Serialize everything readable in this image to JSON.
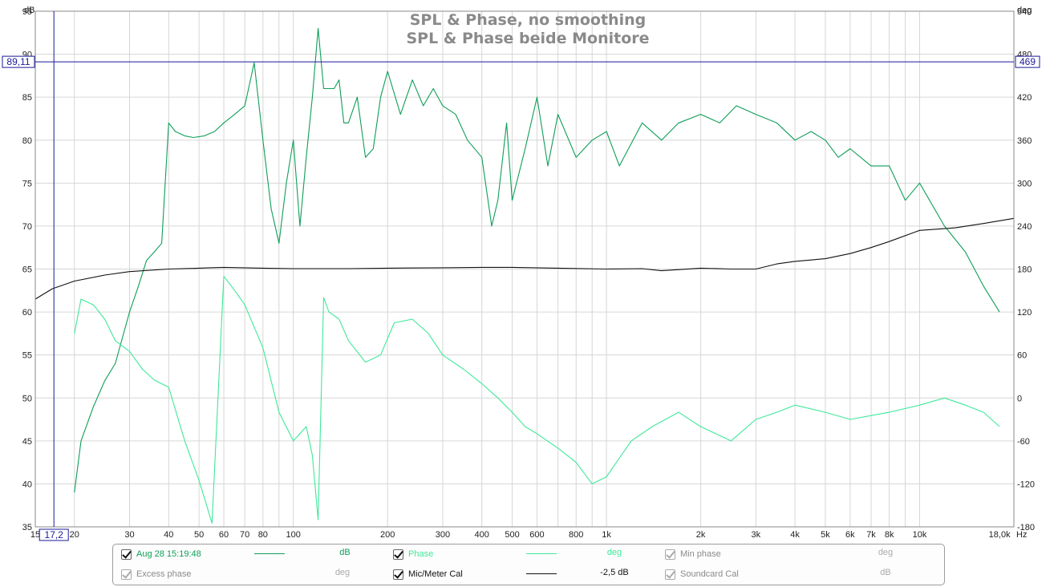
{
  "chart_data": {
    "type": "line",
    "title": "SPL & Phase, no smoothing",
    "subtitle": "SPL & Phase beide Monitore",
    "x_scale": "log",
    "xlim": [
      15,
      20000
    ],
    "x_ticks": [
      {
        "v": 15,
        "label": "15"
      },
      {
        "v": 20,
        "label": "20"
      },
      {
        "v": 30,
        "label": "30"
      },
      {
        "v": 40,
        "label": "40"
      },
      {
        "v": 50,
        "label": "50"
      },
      {
        "v": 60,
        "label": "60"
      },
      {
        "v": 70,
        "label": "70"
      },
      {
        "v": 80,
        "label": "80"
      },
      {
        "v": 100,
        "label": "100"
      },
      {
        "v": 200,
        "label": "200"
      },
      {
        "v": 300,
        "label": "300"
      },
      {
        "v": 400,
        "label": "400"
      },
      {
        "v": 500,
        "label": "500"
      },
      {
        "v": 600,
        "label": "600"
      },
      {
        "v": 800,
        "label": "800"
      },
      {
        "v": 1000,
        "label": "1k"
      },
      {
        "v": 2000,
        "label": "2k"
      },
      {
        "v": 3000,
        "label": "3k"
      },
      {
        "v": 4000,
        "label": "4k"
      },
      {
        "v": 5000,
        "label": "5k"
      },
      {
        "v": 6000,
        "label": "6k"
      },
      {
        "v": 7000,
        "label": "7k"
      },
      {
        "v": 8000,
        "label": "8k"
      },
      {
        "v": 10000,
        "label": "10k"
      },
      {
        "v": 18000,
        "label": "18,0k"
      }
    ],
    "x_unit": "Hz",
    "ylim_left": [
      35,
      95
    ],
    "y_ticks_left": [
      35,
      40,
      45,
      50,
      55,
      60,
      65,
      70,
      75,
      80,
      85,
      90,
      95
    ],
    "y_unit_left": "dB",
    "ylim_right": [
      -180,
      540
    ],
    "y_ticks_right": [
      -180,
      -120,
      -60,
      0,
      60,
      120,
      180,
      240,
      300,
      360,
      420,
      480,
      540
    ],
    "y_unit_right": "deg",
    "grid": true,
    "cursor": {
      "x_label": "17,2",
      "x": 17.2,
      "y_label": "89,11",
      "y": 89.11,
      "y_right_label": "469"
    },
    "series": [
      {
        "name": "Aug 28 15:19:48",
        "axis": "left",
        "unit": "dB",
        "color": "#0e9e58",
        "x": [
          20,
          21,
          23,
          25,
          27,
          30,
          32,
          34,
          36,
          38,
          40,
          42,
          45,
          48,
          52,
          56,
          60,
          65,
          70,
          75,
          80,
          85,
          90,
          95,
          100,
          105,
          110,
          115,
          120,
          125,
          130,
          135,
          140,
          145,
          150,
          160,
          170,
          180,
          190,
          200,
          220,
          240,
          260,
          280,
          300,
          330,
          360,
          400,
          430,
          450,
          480,
          500,
          550,
          600,
          650,
          700,
          800,
          900,
          1000,
          1100,
          1300,
          1500,
          1700,
          2000,
          2300,
          2600,
          3000,
          3500,
          4000,
          4500,
          5000,
          5500,
          6000,
          7000,
          8000,
          9000,
          10000,
          12000,
          14000,
          16000,
          18000
        ],
        "values": [
          39,
          45,
          49,
          52,
          54,
          60,
          63,
          66,
          67,
          68,
          82,
          81,
          80.5,
          80.3,
          80.5,
          81,
          82,
          83,
          84,
          89,
          80,
          72,
          68,
          75,
          80,
          70,
          78,
          85,
          93,
          86,
          86,
          86,
          87,
          82,
          82,
          85,
          78,
          79,
          85,
          88,
          83,
          87,
          84,
          86,
          84,
          83,
          80,
          78,
          70,
          73,
          82,
          73,
          79,
          85,
          77,
          83,
          78,
          80,
          81,
          77,
          82,
          80,
          82,
          83,
          82,
          84,
          83,
          82,
          80,
          81,
          80,
          78,
          79,
          77,
          77,
          73,
          75,
          70,
          67,
          63,
          60
        ]
      },
      {
        "name": "Phase",
        "axis": "right",
        "unit": "deg",
        "color": "#3fe89a",
        "x": [
          20,
          21,
          23,
          25,
          27,
          30,
          33,
          36,
          40,
          45,
          50,
          55,
          60,
          65,
          70,
          80,
          90,
          100,
          110,
          115,
          120,
          125,
          130,
          140,
          150,
          170,
          190,
          210,
          240,
          270,
          300,
          350,
          400,
          450,
          500,
          550,
          600,
          700,
          800,
          900,
          1000,
          1200,
          1400,
          1700,
          2000,
          2500,
          3000,
          3500,
          4000,
          5000,
          6000,
          8000,
          10000,
          12000,
          14000,
          16000,
          18000
        ],
        "values": [
          90,
          138,
          130,
          110,
          80,
          65,
          40,
          25,
          15,
          -60,
          -115,
          -175,
          170,
          150,
          130,
          70,
          -20,
          -60,
          -40,
          -80,
          -170,
          140,
          120,
          110,
          80,
          50,
          60,
          105,
          110,
          90,
          60,
          40,
          20,
          0,
          -20,
          -40,
          -50,
          -70,
          -90,
          -120,
          -110,
          -60,
          -40,
          -20,
          -40,
          -60,
          -30,
          -20,
          -10,
          -20,
          -30,
          -20,
          -10,
          0,
          -10,
          -20,
          -40
        ]
      },
      {
        "name": "Mic/Meter Cal",
        "axis": "left",
        "unit": "dB",
        "note": "-2,5 dB",
        "color": "#111111",
        "x": [
          15,
          17,
          20,
          25,
          30,
          40,
          50,
          60,
          80,
          100,
          150,
          200,
          300,
          400,
          500,
          700,
          1000,
          1300,
          1500,
          2000,
          2500,
          3000,
          3500,
          4000,
          5000,
          6000,
          7000,
          8000,
          10000,
          13000,
          16000,
          20000
        ],
        "values": [
          61.5,
          62.7,
          63.6,
          64.3,
          64.7,
          65,
          65.1,
          65.2,
          65.1,
          65.05,
          65.05,
          65.1,
          65.15,
          65.2,
          65.2,
          65.1,
          65,
          65.05,
          64.8,
          65.1,
          65,
          65,
          65.6,
          65.9,
          66.2,
          66.8,
          67.5,
          68.2,
          69.5,
          69.8,
          70.3,
          70.9
        ]
      }
    ]
  },
  "legend": {
    "items": [
      {
        "label": "Aug 28 15:19:48",
        "unit": "dB",
        "checked": true,
        "color": "#0e9e58",
        "line": true
      },
      {
        "label": "Phase",
        "unit": "deg",
        "checked": true,
        "color": "#3fe89a",
        "line": true
      },
      {
        "label": "Min phase",
        "unit": "deg",
        "checked": true,
        "enabled": false
      },
      {
        "label": "Excess phase",
        "unit": "deg",
        "checked": true,
        "enabled": false
      },
      {
        "label": "Mic/Meter Cal",
        "unit": "-2,5 dB",
        "checked": true,
        "color": "#111111",
        "line": true
      },
      {
        "label": "Soundcard Cal",
        "unit": "dB",
        "checked": true,
        "enabled": false
      }
    ]
  }
}
